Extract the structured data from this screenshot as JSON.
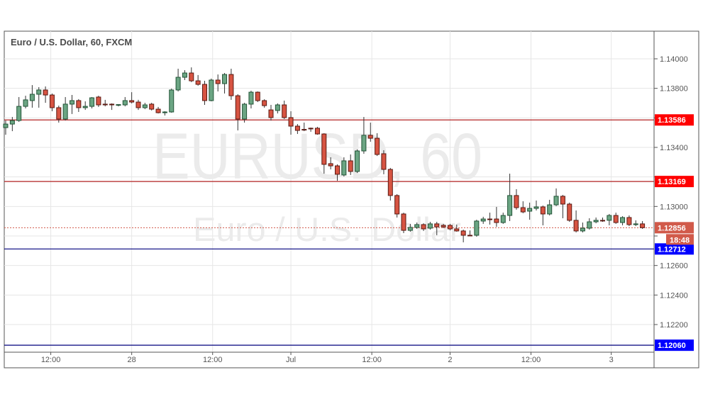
{
  "chart_data": {
    "type": "candlestick",
    "title": "Euro / U.S. Dollar, 60, FXCM",
    "watermark": {
      "symbol_line": "EURUSD, 60",
      "name_line": "Euro / U.S. Dollar"
    },
    "ylim": [
      1.1199,
      1.1418
    ],
    "y_ticks": [
      "1.14000",
      "1.13800",
      "1.13400",
      "1.13000",
      "1.12600",
      "1.12400",
      "1.12200"
    ],
    "y_tick_values": [
      1.14,
      1.138,
      1.134,
      1.13,
      1.126,
      1.124,
      1.122
    ],
    "grid": true,
    "x_ticks": [
      {
        "label": "12:00",
        "at_bar": 6.8
      },
      {
        "label": "28",
        "at_bar": 19.0
      },
      {
        "label": "12:00",
        "at_bar": 31.2
      },
      {
        "label": "Jul",
        "at_bar": 43.0
      },
      {
        "label": "12:00",
        "at_bar": 55.2
      },
      {
        "label": "2",
        "at_bar": 67.0
      },
      {
        "label": "12:00",
        "at_bar": 79.2
      },
      {
        "label": "3",
        "at_bar": 91.3
      }
    ],
    "levels": [
      {
        "price": 1.13586,
        "label": "1.13586",
        "line_color": "#b22222",
        "label_bg": "#ff0000"
      },
      {
        "price": 1.13169,
        "label": "1.13169",
        "line_color": "#b22222",
        "label_bg": "#ff0000"
      },
      {
        "price": 1.12712,
        "label": "1.12712",
        "line_color": "#00007f",
        "label_bg": "#0000ff"
      },
      {
        "price": 1.1206,
        "label": "1.12060",
        "line_color": "#00007f",
        "label_bg": "#0000ff"
      }
    ],
    "last_price": {
      "price": 1.12856,
      "label": "1.12856",
      "countdown": "18:48",
      "color": "#d15a4a"
    },
    "colors": {
      "up_body": "#6ba583",
      "up_border": "#225437",
      "down_body": "#d75442",
      "down_border": "#5b1a13",
      "wick": "#333333"
    },
    "ohlc": [
      [
        1.13534,
        1.13582,
        1.13486,
        1.13558
      ],
      [
        1.13558,
        1.13606,
        1.1351,
        1.13582
      ],
      [
        1.13582,
        1.13741,
        1.13573,
        1.13678
      ],
      [
        1.13678,
        1.1375,
        1.13664,
        1.13722
      ],
      [
        1.13717,
        1.13822,
        1.13669,
        1.1376
      ],
      [
        1.1376,
        1.13808,
        1.13669,
        1.13789
      ],
      [
        1.13789,
        1.13813,
        1.13702,
        1.13755
      ],
      [
        1.13755,
        1.13765,
        1.13645,
        1.13669
      ],
      [
        1.13669,
        1.13683,
        1.13568,
        1.13592
      ],
      [
        1.13592,
        1.13741,
        1.13582,
        1.13693
      ],
      [
        1.13693,
        1.13755,
        1.13626,
        1.13717
      ],
      [
        1.13717,
        1.13727,
        1.1364,
        1.13669
      ],
      [
        1.13669,
        1.13712,
        1.13654,
        1.13678
      ],
      [
        1.13678,
        1.13741,
        1.13664,
        1.13736
      ],
      [
        1.13741,
        1.1375,
        1.13674,
        1.13688
      ],
      [
        1.13693,
        1.13722,
        1.13678,
        1.13688
      ],
      [
        1.13693,
        1.13698,
        1.13654,
        1.13688
      ],
      [
        1.13688,
        1.13693,
        1.13678,
        1.1369
      ],
      [
        1.13688,
        1.13741,
        1.13678,
        1.13717
      ],
      [
        1.13717,
        1.13774,
        1.13698,
        1.13707
      ],
      [
        1.13707,
        1.13722,
        1.13654,
        1.13669
      ],
      [
        1.13669,
        1.13702,
        1.13659,
        1.13688
      ],
      [
        1.13693,
        1.13702,
        1.1365,
        1.13659
      ],
      [
        1.13659,
        1.13674,
        1.1363,
        1.13635
      ],
      [
        1.13635,
        1.13645,
        1.13616,
        1.1364
      ],
      [
        1.1364,
        1.13798,
        1.13635,
        1.13789
      ],
      [
        1.13789,
        1.13933,
        1.13779,
        1.13875
      ],
      [
        1.13875,
        1.13923,
        1.13856,
        1.13904
      ],
      [
        1.13904,
        1.13942,
        1.13842,
        1.13851
      ],
      [
        1.13851,
        1.1389,
        1.13818,
        1.13827
      ],
      [
        1.13827,
        1.13851,
        1.13688,
        1.13717
      ],
      [
        1.13717,
        1.13866,
        1.13712,
        1.13856
      ],
      [
        1.13856,
        1.13894,
        1.13779,
        1.13832
      ],
      [
        1.13832,
        1.13904,
        1.13765,
        1.13894
      ],
      [
        1.13894,
        1.13933,
        1.13722,
        1.1375
      ],
      [
        1.1375,
        1.1376,
        1.13515,
        1.13592
      ],
      [
        1.13592,
        1.13702,
        1.13568,
        1.13693
      ],
      [
        1.13693,
        1.13784,
        1.13664,
        1.13774
      ],
      [
        1.13774,
        1.13779,
        1.13707,
        1.13717
      ],
      [
        1.13717,
        1.13726,
        1.13669,
        1.13683
      ],
      [
        1.13654,
        1.13688,
        1.13582,
        1.13602
      ],
      [
        1.1365,
        1.13698,
        1.1363,
        1.13688
      ],
      [
        1.13688,
        1.13717,
        1.13592,
        1.13602
      ],
      [
        1.13602,
        1.13645,
        1.13486,
        1.13544
      ],
      [
        1.13544,
        1.13558,
        1.13491,
        1.13515
      ],
      [
        1.13522,
        1.13568,
        1.1351,
        1.13518
      ],
      [
        1.1353,
        1.13534,
        1.13506,
        1.13526
      ],
      [
        1.1353,
        1.13539,
        1.13486,
        1.13491
      ],
      [
        1.13491,
        1.13496,
        1.13222,
        1.13285
      ],
      [
        1.1329,
        1.13333,
        1.13251,
        1.13275
      ],
      [
        1.13275,
        1.13285,
        1.13174,
        1.13218
      ],
      [
        1.13213,
        1.13333,
        1.13203,
        1.13309
      ],
      [
        1.13309,
        1.13352,
        1.13213,
        1.13237
      ],
      [
        1.13237,
        1.13386,
        1.13227,
        1.13376
      ],
      [
        1.13376,
        1.13606,
        1.13357,
        1.13482
      ],
      [
        1.13482,
        1.13568,
        1.13438,
        1.13462
      ],
      [
        1.13462,
        1.13496,
        1.13342,
        1.13352
      ],
      [
        1.13357,
        1.13381,
        1.13218,
        1.13251
      ],
      [
        1.13251,
        1.13261,
        1.1304,
        1.13074
      ],
      [
        1.13074,
        1.13083,
        1.12925,
        1.12949
      ],
      [
        1.12949,
        1.12958,
        1.12819,
        1.12838
      ],
      [
        1.12838,
        1.12882,
        1.12829,
        1.12858
      ],
      [
        1.12858,
        1.12891,
        1.12848,
        1.12877
      ],
      [
        1.12877,
        1.12886,
        1.12834,
        1.12848
      ],
      [
        1.12853,
        1.12896,
        1.12843,
        1.12882
      ],
      [
        1.12882,
        1.12896,
        1.12805,
        1.12862
      ],
      [
        1.12872,
        1.12882,
        1.12853,
        1.12862
      ],
      [
        1.12872,
        1.12882,
        1.12838,
        1.12848
      ],
      [
        1.12848,
        1.12877,
        1.12829,
        1.12834
      ],
      [
        1.12834,
        1.12843,
        1.12757,
        1.12805
      ],
      [
        1.12805,
        1.12838,
        1.128,
        1.12803
      ],
      [
        1.12805,
        1.1291,
        1.12795,
        1.12901
      ],
      [
        1.12901,
        1.1293,
        1.12882,
        1.12915
      ],
      [
        1.12915,
        1.12958,
        1.12877,
        1.12913
      ],
      [
        1.12915,
        1.12997,
        1.12862,
        1.12891
      ],
      [
        1.12891,
        1.12958,
        1.12882,
        1.12939
      ],
      [
        1.12939,
        1.13222,
        1.12901,
        1.13074
      ],
      [
        1.13074,
        1.13117,
        1.12978,
        1.12992
      ],
      [
        1.12992,
        1.13035,
        1.12954,
        1.12963
      ],
      [
        1.12968,
        1.13026,
        1.1291,
        1.12987
      ],
      [
        1.12987,
        1.1304,
        1.12973,
        1.12997
      ],
      [
        1.12997,
        1.13006,
        1.12872,
        1.12949
      ],
      [
        1.12949,
        1.13045,
        1.12939,
        1.13011
      ],
      [
        1.13011,
        1.13122,
        1.13002,
        1.13069
      ],
      [
        1.13069,
        1.13078,
        1.1292,
        1.13016
      ],
      [
        1.13016,
        1.13026,
        1.12896,
        1.12906
      ],
      [
        1.12906,
        1.12973,
        1.12824,
        1.12834
      ],
      [
        1.12834,
        1.12891,
        1.12824,
        1.12853
      ],
      [
        1.12853,
        1.1292,
        1.12843,
        1.12896
      ],
      [
        1.12896,
        1.12925,
        1.12886,
        1.12906
      ],
      [
        1.12906,
        1.12925,
        1.12896,
        1.12904
      ],
      [
        1.12906,
        1.12949,
        1.12872,
        1.12939
      ],
      [
        1.12939,
        1.12958,
        1.12882,
        1.12891
      ],
      [
        1.12891,
        1.12934,
        1.12872,
        1.12925
      ],
      [
        1.12925,
        1.12939,
        1.12867,
        1.12877
      ],
      [
        1.12877,
        1.12906,
        1.12867,
        1.12882
      ],
      [
        1.12882,
        1.12901,
        1.12848,
        1.12856
      ]
    ]
  }
}
